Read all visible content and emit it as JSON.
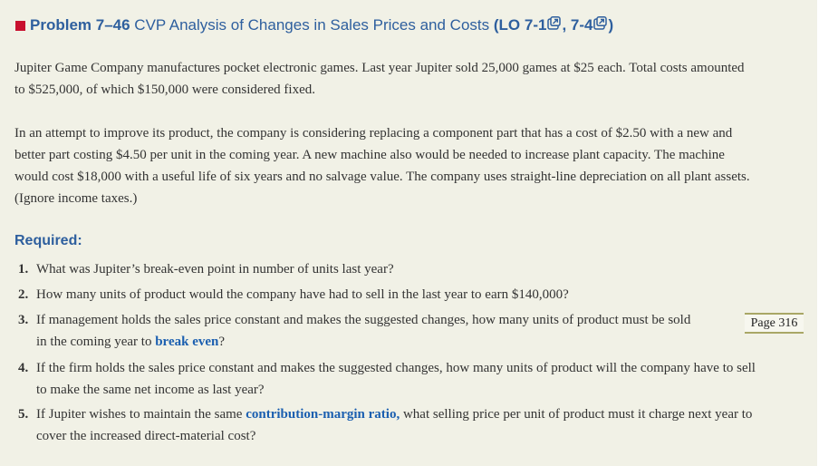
{
  "header": {
    "problem_label": "Problem 7–46",
    "title": "CVP Analysis of Changes in Sales Prices and Costs",
    "lo_open": "(LO 7-1",
    "lo_sep": ", 7-4",
    "lo_close": ")"
  },
  "paragraphs": {
    "p1_line1": "Jupiter Game Company manufactures pocket electronic games. Last year Jupiter sold 25,000 games at $25 each. Total costs amounted",
    "p1_line2": "to $525,000, of which $150,000 were considered fixed.",
    "p2_line1": "In an attempt to improve its product, the company is considering replacing a component part that has a cost of $2.50 with a new and",
    "p2_line2": "better part costing $4.50 per unit in the coming year. A new machine also would be needed to increase plant capacity. The machine",
    "p2_line3": "would cost $18,000 with a useful life of six years and no salvage value. The company uses straight-line depreciation on all plant assets.",
    "p2_line4": "(Ignore income taxes.)"
  },
  "required": {
    "label": "Required:",
    "q1": {
      "num": "1.",
      "text": "What was Jupiter’s break-even point in number of units last year?"
    },
    "q2": {
      "num": "2.",
      "text": "How many units of product would the company have had to sell in the last year to earn $140,000?"
    },
    "q3": {
      "num": "3.",
      "line1": "If management holds the sales price constant and makes the suggested changes, how many units of product must be sold",
      "line2_pre": "in the coming year to ",
      "term": "break even",
      "line2_post": "?"
    },
    "q4": {
      "num": "4.",
      "line1": "If the firm holds the sales price constant and makes the suggested changes, how many units of product will the company have to sell",
      "line2": "to make the same net income as last year?"
    },
    "q5": {
      "num": "5.",
      "line1_pre": "If Jupiter wishes to maintain the same ",
      "term": "contribution-margin ratio,",
      "line1_post": " what selling price per unit of product must it charge next year to",
      "line2": "cover the increased direct-material cost?"
    }
  },
  "page_marker": "Page 316",
  "colors": {
    "accent_blue": "#2e5f9e",
    "term_blue": "#1b5fb0",
    "marker_red": "#c8102e",
    "panel_bg": "#f1f1e6"
  }
}
